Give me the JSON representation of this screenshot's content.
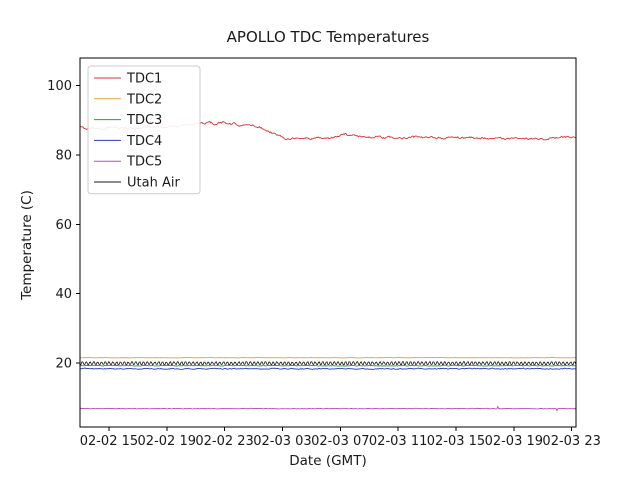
{
  "figure": {
    "title": "APOLLO TDC Temperatures",
    "xlabel": "Date (GMT)",
    "ylabel": "Temperature (C)"
  },
  "chart_data": {
    "type": "line",
    "title": "APOLLO TDC Temperatures",
    "xlabel": "Date (GMT)",
    "ylabel": "Temperature (C)",
    "grid": false,
    "legend_position": "upper left",
    "x_unit": "hours since 02-02 13:00 GMT",
    "xlim": [
      0,
      34.3
    ],
    "ylim": [
      1.5,
      108
    ],
    "y_ticks": [
      20,
      40,
      60,
      80,
      100
    ],
    "x_ticks": [
      {
        "hour": 2,
        "label": "02-02 15"
      },
      {
        "hour": 6,
        "label": "02-02 19"
      },
      {
        "hour": 10,
        "label": "02-02 23"
      },
      {
        "hour": 14,
        "label": "02-03 03"
      },
      {
        "hour": 18,
        "label": "02-03 07"
      },
      {
        "hour": 22,
        "label": "02-03 11"
      },
      {
        "hour": 26,
        "label": "02-03 15"
      },
      {
        "hour": 30,
        "label": "02-03 19"
      },
      {
        "hour": 34,
        "label": "02-03 23"
      }
    ],
    "series": [
      {
        "name": "TDC1",
        "color": "#e03030",
        "line_width": 0.9,
        "noise": {
          "mode": "smooth",
          "amp": 0.28
        },
        "points": [
          [
            0,
            88.0
          ],
          [
            0.5,
            87.6
          ],
          [
            1,
            87.9
          ],
          [
            1.5,
            87.4
          ],
          [
            2,
            87.8
          ],
          [
            2.5,
            88.1
          ],
          [
            3,
            87.7
          ],
          [
            3.5,
            87.9
          ],
          [
            4,
            87.6
          ],
          [
            4.5,
            88.0
          ],
          [
            5,
            88.2
          ],
          [
            5.5,
            88.0
          ],
          [
            6,
            88.3
          ],
          [
            6.5,
            88.1
          ],
          [
            7,
            88.4
          ],
          [
            7.5,
            88.7
          ],
          [
            8,
            88.9
          ],
          [
            8.5,
            89.2
          ],
          [
            9,
            89.4
          ],
          [
            9.3,
            88.9
          ],
          [
            9.6,
            89.3
          ],
          [
            10,
            89.5
          ],
          [
            10.3,
            88.8
          ],
          [
            10.6,
            89.0
          ],
          [
            11,
            88.6
          ],
          [
            11.3,
            88.9
          ],
          [
            11.6,
            88.4
          ],
          [
            12,
            88.6
          ],
          [
            12.4,
            88.0
          ],
          [
            12.8,
            87.4
          ],
          [
            13.2,
            86.6
          ],
          [
            13.6,
            85.8
          ],
          [
            14,
            85.1
          ],
          [
            14.4,
            84.7
          ],
          [
            14.8,
            85.0
          ],
          [
            15.2,
            84.6
          ],
          [
            15.6,
            84.9
          ],
          [
            16,
            84.7
          ],
          [
            16.5,
            85.1
          ],
          [
            17,
            84.8
          ],
          [
            17.5,
            85.0
          ],
          [
            18,
            85.6
          ],
          [
            18.3,
            86.1
          ],
          [
            18.6,
            85.7
          ],
          [
            19,
            85.9
          ],
          [
            19.5,
            85.3
          ],
          [
            20,
            85.1
          ],
          [
            20.5,
            85.3
          ],
          [
            21,
            84.9
          ],
          [
            21.5,
            85.1
          ],
          [
            22,
            84.8
          ],
          [
            22.5,
            85.0
          ],
          [
            23,
            85.4
          ],
          [
            23.5,
            85.1
          ],
          [
            24,
            84.9
          ],
          [
            24.5,
            85.1
          ],
          [
            25,
            84.8
          ],
          [
            25.5,
            85.0
          ],
          [
            26,
            85.2
          ],
          [
            26.5,
            84.9
          ],
          [
            27,
            85.1
          ],
          [
            27.5,
            84.8
          ],
          [
            28,
            85.0
          ],
          [
            28.5,
            84.7
          ],
          [
            29,
            84.9
          ],
          [
            29.5,
            84.6
          ],
          [
            30,
            84.8
          ],
          [
            30.5,
            84.5
          ],
          [
            31,
            84.7
          ],
          [
            31.5,
            84.9
          ],
          [
            32,
            84.6
          ],
          [
            32.5,
            84.8
          ],
          [
            33,
            85.0
          ],
          [
            33.5,
            85.2
          ],
          [
            34,
            84.9
          ],
          [
            34.3,
            85.0
          ]
        ]
      },
      {
        "name": "TDC2",
        "color": "#e2a33c",
        "line_width": 0.9,
        "noise": {
          "mode": "smooth",
          "amp": 0.05
        },
        "points": [
          [
            0,
            21.5
          ],
          [
            34.3,
            21.5
          ]
        ]
      },
      {
        "name": "TDC3",
        "color": "#2ca02c",
        "line_width": 0.9,
        "noise": {
          "mode": "smooth",
          "amp": 0.09
        },
        "points": [
          [
            0,
            19.2
          ],
          [
            34.3,
            19.2
          ]
        ]
      },
      {
        "name": "TDC4",
        "color": "#2a3cb8",
        "line_width": 0.9,
        "noise": {
          "mode": "smooth",
          "amp": 0.14
        },
        "points": [
          [
            0,
            18.3
          ],
          [
            34.3,
            18.3
          ]
        ]
      },
      {
        "name": "TDC5",
        "color": "#b44fb4",
        "line_width": 0.9,
        "noise": {
          "mode": "spiky",
          "amp": 0.1
        },
        "points": [
          [
            0,
            6.8
          ],
          [
            34.3,
            6.8
          ]
        ]
      },
      {
        "name": "Utah Air",
        "color": "#1a1a1a",
        "line_width": 0.8,
        "noise": {
          "mode": "zigzag",
          "amp": 0.45
        },
        "points": [
          [
            0,
            19.9
          ],
          [
            34.3,
            19.9
          ]
        ]
      }
    ]
  }
}
